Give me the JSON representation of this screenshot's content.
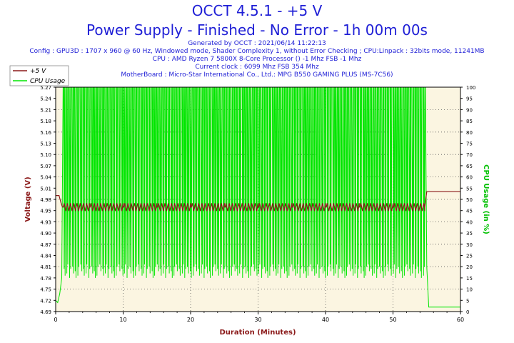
{
  "header": {
    "title": "OCCT 4.5.1 - +5 V",
    "subtitle": "Power Supply - Finished - No Error - 1h 00m 00s",
    "info_lines": [
      "Generated by OCCT : 2021/06/14 11:22:13",
      "Config : GPU3D : 1707 x 960 @ 60 Hz, Windowed mode, Shader Complexity 1, without Error Checking ; CPU:Linpack : 32bits mode, 11241MB",
      "CPU : AMD Ryzen 7 5800X 8-Core Processor () -1 Mhz FSB -1 Mhz",
      "Current clock : 6099 Mhz FSB 354 Mhz",
      "MotherBoard : Micro-Star International Co., Ltd.: MPG B550 GAMING PLUS (MS-7C56)"
    ]
  },
  "chart_data": {
    "type": "line",
    "title": "OCCT 4.5.1 - +5 V",
    "xlabel": "Duration (Minutes)",
    "ylabel_left": "Voltage (V)",
    "ylabel_right": "CPU Usage (in %)",
    "xlim": [
      0,
      60
    ],
    "ylim_left": [
      4.69,
      5.27
    ],
    "ylim_right": [
      0,
      100
    ],
    "x_ticks": [
      "0",
      "10",
      "20",
      "30",
      "40",
      "50",
      "60"
    ],
    "y_ticks_left": [
      "4.69",
      "4.72",
      "4.75",
      "4.78",
      "4.81",
      "4.84",
      "4.87",
      "4.90",
      "4.93",
      "4.95",
      "4.98",
      "5.01",
      "5.04",
      "5.07",
      "5.10",
      "5.13",
      "5.16",
      "5.18",
      "5.21",
      "5.24",
      "5.27"
    ],
    "y_ticks_right": [
      "0",
      "5",
      "10",
      "15",
      "20",
      "25",
      "30",
      "35",
      "40",
      "45",
      "50",
      "55",
      "60",
      "65",
      "70",
      "75",
      "80",
      "85",
      "90",
      "95",
      "100"
    ],
    "legend_position": "top-left",
    "series": [
      {
        "name": "+5 V",
        "axis": "left",
        "color": "#8b1a1a",
        "points": [
          [
            0,
            4.99
          ],
          [
            0.5,
            4.99
          ],
          [
            0.8,
            4.97
          ],
          [
            1,
            4.96
          ],
          [
            5,
            4.96
          ],
          [
            10,
            4.96
          ],
          [
            15,
            4.96
          ],
          [
            20,
            4.96
          ],
          [
            25,
            4.96
          ],
          [
            30,
            4.96
          ],
          [
            35,
            4.96
          ],
          [
            40,
            4.96
          ],
          [
            45,
            4.96
          ],
          [
            50,
            4.96
          ],
          [
            54.7,
            4.96
          ],
          [
            55.0,
            5.0
          ],
          [
            55.3,
            5.0
          ],
          [
            60,
            5.0
          ]
        ],
        "fluctuation_band": [
          4.95,
          4.97
        ]
      },
      {
        "name": "CPU Usage",
        "axis": "right",
        "color": "#00e600",
        "points": [
          [
            0,
            5
          ],
          [
            0.3,
            4
          ],
          [
            0.6,
            8
          ],
          [
            0.9,
            15
          ],
          [
            1.1,
            100
          ],
          [
            54.8,
            100
          ],
          [
            55.0,
            20
          ],
          [
            55.3,
            2
          ],
          [
            60,
            2
          ]
        ],
        "usage_range_during_test": [
          15,
          100
        ]
      }
    ]
  }
}
